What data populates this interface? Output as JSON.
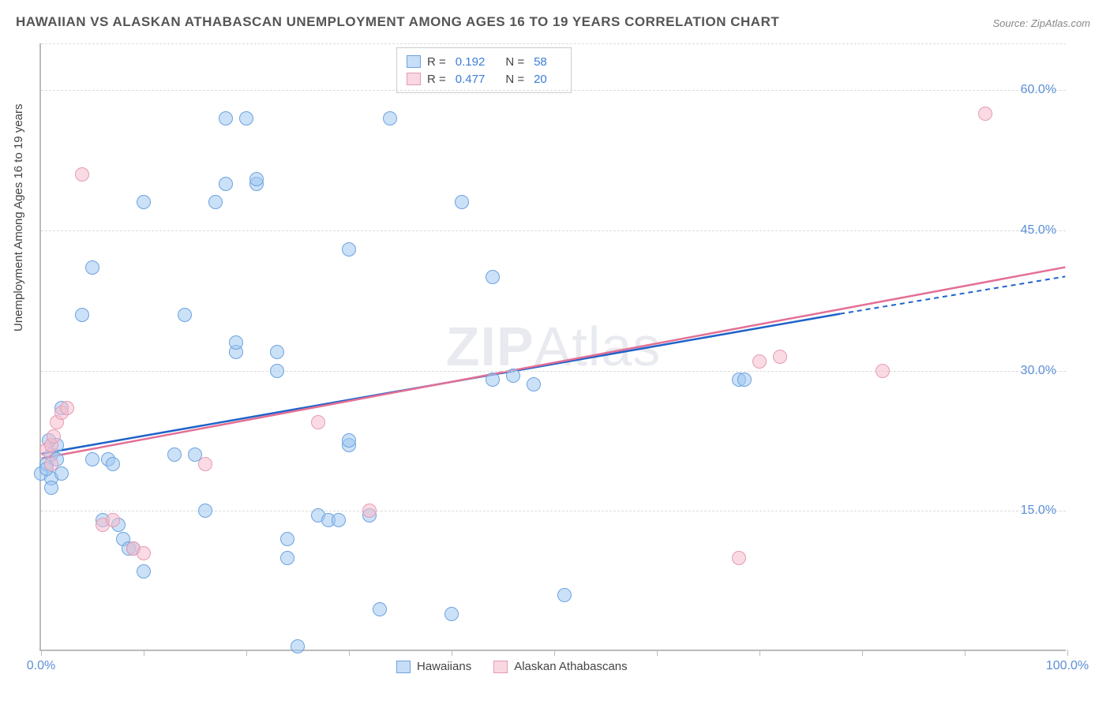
{
  "title": "HAWAIIAN VS ALASKAN ATHABASCAN UNEMPLOYMENT AMONG AGES 16 TO 19 YEARS CORRELATION CHART",
  "source": "Source: ZipAtlas.com",
  "ylabel": "Unemployment Among Ages 16 to 19 years",
  "watermark_bold": "ZIP",
  "watermark_rest": "Atlas",
  "chart": {
    "type": "scatter",
    "xlim": [
      0,
      100
    ],
    "ylim": [
      0,
      65
    ],
    "x_ticks": [
      0,
      10,
      20,
      30,
      40,
      50,
      60,
      70,
      80,
      90,
      100
    ],
    "x_tick_labels_shown": {
      "0": "0.0%",
      "100": "100.0%"
    },
    "y_gridlines": [
      15,
      30,
      45,
      60,
      65
    ],
    "y_tick_labels": {
      "15": "15.0%",
      "30": "30.0%",
      "45": "45.0%",
      "60": "60.0%"
    },
    "background_color": "#ffffff",
    "grid_color": "#dcdcdc",
    "axis_color": "#bbbbbb",
    "marker_size": 18,
    "colors": {
      "blue_fill": "rgba(160,200,240,0.55)",
      "blue_stroke": "#6da2e0",
      "pink_fill": "rgba(245,190,205,0.55)",
      "pink_stroke": "#e79ab2",
      "blue_line": "#1f63c9",
      "pink_line": "#e36f94",
      "tick_label": "#5b8fd6"
    },
    "series": [
      {
        "name": "Hawaiians",
        "marker_class": "marker-blue",
        "legend_swatch": "swatch-blue",
        "stats": {
          "R_label": "R =",
          "R": "0.192",
          "N_label": "N =",
          "N": "58"
        },
        "trend": {
          "x1": 0,
          "y1": 21,
          "x2": 78,
          "y2": 36,
          "dash_x2": 100,
          "dash_y2": 40,
          "color": "#1f63c9",
          "width": 2.5
        },
        "points": [
          [
            0,
            19
          ],
          [
            0.5,
            20
          ],
          [
            1,
            18.5
          ],
          [
            1,
            21
          ],
          [
            1.5,
            22
          ],
          [
            1.5,
            20.5
          ],
          [
            0.5,
            19.5
          ],
          [
            1,
            17.5
          ],
          [
            2,
            19
          ],
          [
            2,
            26
          ],
          [
            0.8,
            22.5
          ],
          [
            4,
            36
          ],
          [
            5,
            20.5
          ],
          [
            5,
            41
          ],
          [
            6,
            14
          ],
          [
            6.5,
            20.5
          ],
          [
            7,
            20
          ],
          [
            7.5,
            13.5
          ],
          [
            8,
            12
          ],
          [
            8.5,
            11
          ],
          [
            9,
            11
          ],
          [
            10,
            8.5
          ],
          [
            10,
            48
          ],
          [
            13,
            21
          ],
          [
            14,
            36
          ],
          [
            15,
            21
          ],
          [
            16,
            15
          ],
          [
            17,
            48
          ],
          [
            18,
            57
          ],
          [
            18,
            50
          ],
          [
            19,
            32
          ],
          [
            19,
            33
          ],
          [
            20,
            57
          ],
          [
            21,
            50
          ],
          [
            21,
            50.5
          ],
          [
            23,
            30
          ],
          [
            23,
            32
          ],
          [
            24,
            12
          ],
          [
            24,
            10
          ],
          [
            25,
            0.5
          ],
          [
            27,
            14.5
          ],
          [
            28,
            14
          ],
          [
            29,
            14
          ],
          [
            30,
            43
          ],
          [
            30,
            22
          ],
          [
            30,
            22.5
          ],
          [
            32,
            14.5
          ],
          [
            33,
            4.5
          ],
          [
            34,
            57
          ],
          [
            40,
            4
          ],
          [
            41,
            48
          ],
          [
            44,
            29
          ],
          [
            44,
            40
          ],
          [
            46,
            29.5
          ],
          [
            48,
            28.5
          ],
          [
            51,
            6
          ],
          [
            68,
            29
          ],
          [
            68.5,
            29
          ]
        ]
      },
      {
        "name": "Alaskan Athabascans",
        "marker_class": "marker-pink",
        "legend_swatch": "swatch-pink",
        "stats": {
          "R_label": "R =",
          "R": "0.477",
          "N_label": "N =",
          "N": "20"
        },
        "trend": {
          "x1": 0,
          "y1": 20.5,
          "x2": 100,
          "y2": 41,
          "color": "#e36f94",
          "width": 2.5
        },
        "points": [
          [
            0.5,
            21.5
          ],
          [
            1,
            22
          ],
          [
            1.2,
            23
          ],
          [
            1.5,
            24.5
          ],
          [
            1,
            20
          ],
          [
            2,
            25.5
          ],
          [
            2.5,
            26
          ],
          [
            4,
            51
          ],
          [
            6,
            13.5
          ],
          [
            7,
            14
          ],
          [
            9,
            11
          ],
          [
            10,
            10.5
          ],
          [
            16,
            20
          ],
          [
            27,
            24.5
          ],
          [
            32,
            15
          ],
          [
            70,
            31
          ],
          [
            72,
            31.5
          ],
          [
            82,
            30
          ],
          [
            92,
            57.5
          ],
          [
            68,
            10
          ]
        ]
      }
    ]
  },
  "legend_bottom": [
    {
      "label": "Hawaiians",
      "swatch": "swatch-blue"
    },
    {
      "label": "Alaskan Athabascans",
      "swatch": "swatch-pink"
    }
  ]
}
